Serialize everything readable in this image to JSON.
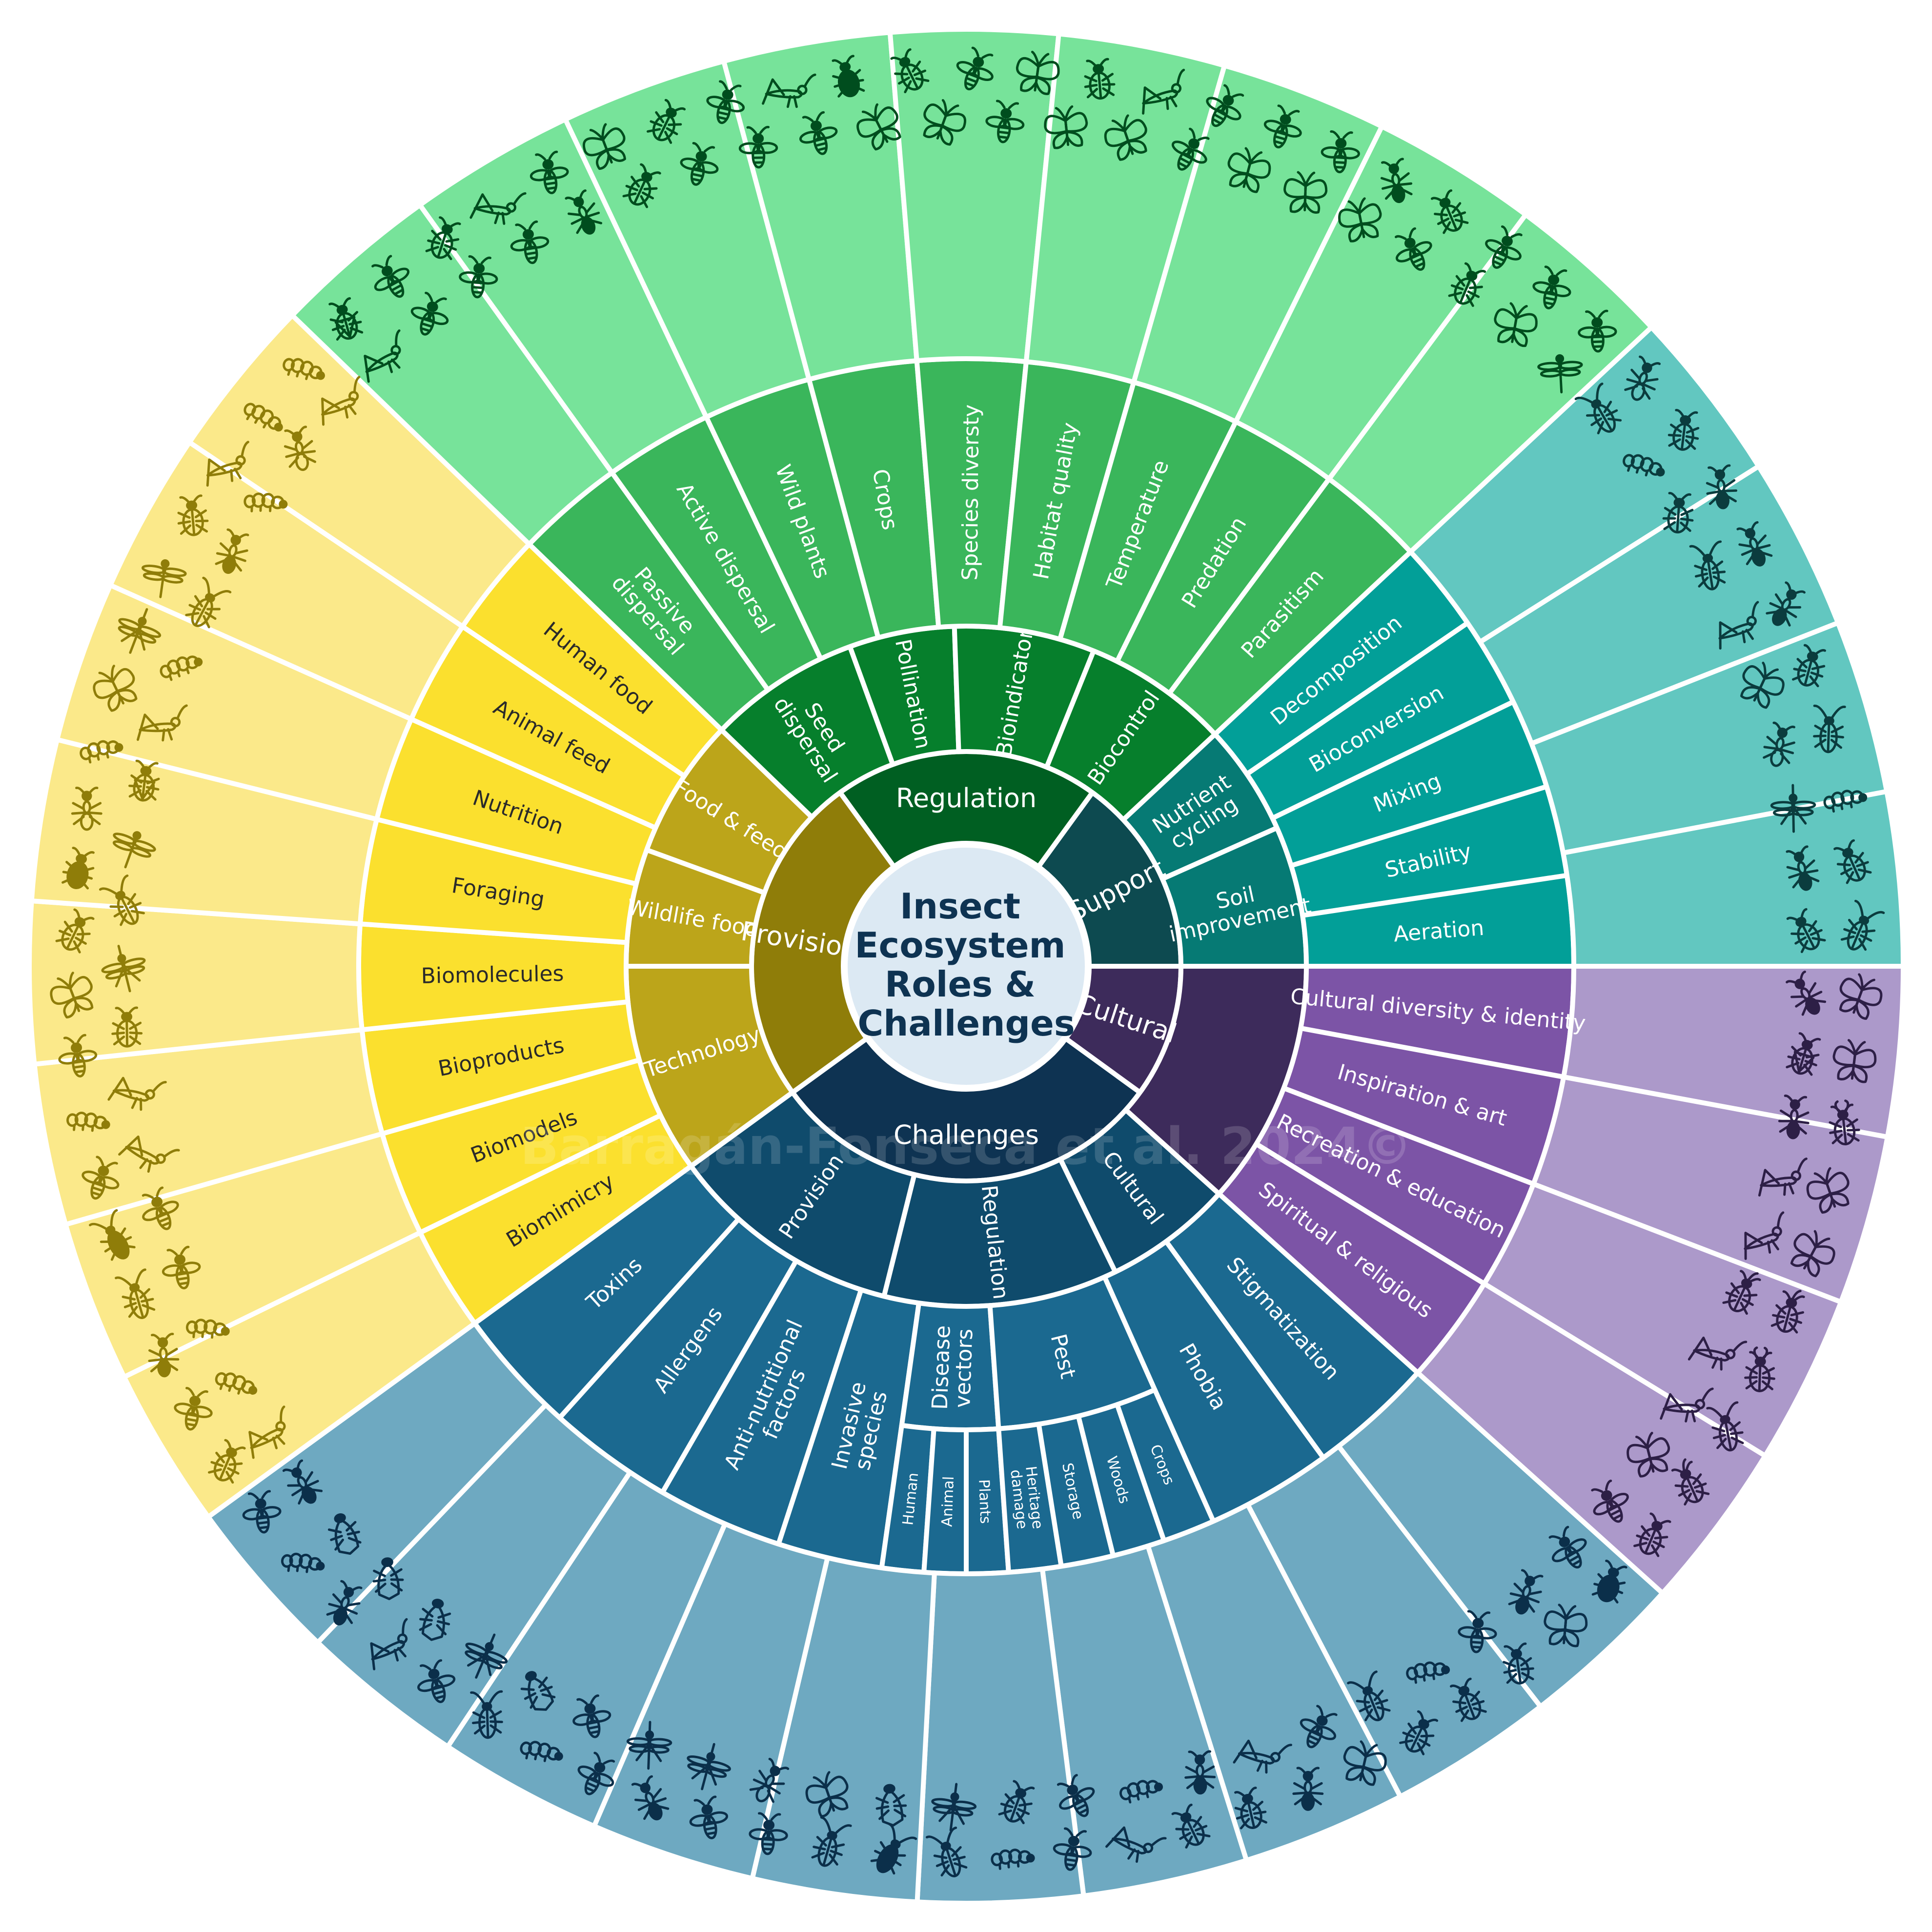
{
  "title_lines": [
    "Insect",
    "Ecosystem",
    "Roles &",
    "Challenges"
  ],
  "watermark": "Barragán-Fonseca et al. 2024©",
  "colors": {
    "centre": "#dce9f3",
    "centre_text": "#0e3352",
    "provision": [
      "#8f7d09",
      "#bca51a",
      "#fbe02e",
      "#fbe98a"
    ],
    "regulation": [
      "#005f22",
      "#067f2c",
      "#3ab65b",
      "#77e39a"
    ],
    "support": [
      "#0d4a50",
      "#067a74",
      "#029f98",
      "#62c7c0"
    ],
    "cultural": [
      "#3d2b5b",
      "#4f377a",
      "#7c54a6",
      "#ac99ca"
    ],
    "challenges": [
      "#0e3352",
      "#0f4b6c",
      "#1b6990",
      "#6ea9c1"
    ],
    "text_dark": "#2a2a2a",
    "icon_provision": "#8f7d09",
    "icon_regulation": "#004d1e",
    "icon_support": "#0b3c3e",
    "icon_cultural": "#2d1f46",
    "icon_challenges": "#0b2f4a"
  },
  "roles": {
    "provision": "Provision",
    "regulation": "Regulation",
    "support": "Support",
    "cultural": "Cultural",
    "challenges": "Challenges"
  },
  "services": {
    "food_feed": "Food & feed",
    "wildlife_food": "Wildlife food",
    "technology": "Technology",
    "seed_dispersal": [
      "Seed",
      "dispersal"
    ],
    "pollination": "Pollination",
    "bioindicator": "Bioindicator",
    "biocontrol": "Biocontrol",
    "nutrient_cycling": [
      "Nutrient",
      "cycling"
    ],
    "soil_improvement": [
      "Soil",
      "improvement"
    ],
    "ch_provision": "Provision",
    "ch_regulation": "Regulation",
    "ch_cultural": "Cultural"
  },
  "outer": {
    "provision": [
      "Human food",
      "Animal feed",
      "Nutrition",
      "Foraging",
      "Biomolecules",
      "Bioproducts",
      "Biomodels",
      "Biomimicry"
    ],
    "regulation": [
      [
        "Passive",
        "dispersal"
      ],
      "Active dispersal",
      "Wild plants",
      "Crops",
      "Species diversty",
      "Habitat quality",
      "Temperature",
      "Predation",
      "Parasitism"
    ],
    "support": [
      "Decomposition",
      "Bioconversion",
      "Mixing",
      "Stability",
      "Aeration"
    ],
    "cultural": [
      "Cultural diversity & identity",
      "Inspiration & art",
      "Recreation & education",
      "Spiritual & religious"
    ],
    "challenges": [
      "Toxins",
      "Allergens",
      [
        "Anti-nutritional",
        "factors"
      ],
      [
        "Invasive",
        "species"
      ],
      [
        "Disease",
        "vectors"
      ],
      "Pest",
      "Phobia",
      "Stigmatization"
    ]
  },
  "sub": {
    "disease_vectors": [
      "Human",
      "Animal",
      "Plants"
    ],
    "pest": [
      [
        "Heritage",
        "damage"
      ],
      "Storage",
      "Woods",
      "Crops"
    ]
  },
  "icons": {
    "provision": [
      "grasshopper",
      "larva",
      "pupa",
      "wasp",
      "fly",
      "grasshopper",
      "grasshopper",
      "beetle",
      "mosquito",
      "cockroach",
      "dragonfly",
      "shield-bug",
      "grasshopper",
      "larva",
      "cockroach",
      "ant",
      "grub",
      "termite",
      "grasshopper",
      "beetle",
      "wasp",
      "ant",
      "longhorn-beetle",
      "bed-bug",
      "wasp",
      "caterpillar",
      "fly",
      "moth",
      "beetle",
      "ladybug",
      "termite",
      "caterpillar",
      "butterfly",
      "mosquito",
      "dragonfly",
      "beetle"
    ],
    "regulation": [
      "grasshopper",
      "fly",
      "wasp",
      "wasp",
      "ant",
      "beetle",
      "fly",
      "bee",
      "wasp",
      "moth",
      "butterfly",
      "bee",
      "moth",
      "butterfly",
      "wasp",
      "butterfly",
      "butterfly",
      "butterfly",
      "wasp",
      "beetle",
      "butterfly",
      "dragonfly",
      "shield-bug",
      "wasp",
      "beetle",
      "grasshopper",
      "wasp",
      "butterfly",
      "beetle",
      "wasp",
      "mantis",
      "ladybug",
      "beetle",
      "wasp",
      "moth",
      "beetle"
    ],
    "support": [
      "cockroach",
      "grub",
      "beetle",
      "cockroach",
      "grasshopper",
      "moth",
      "termite",
      "mosquito",
      "ant",
      "beetle",
      "termite",
      "beetle",
      "ant",
      "ant",
      "ant",
      "beetle"
    ],
    "cultural": [
      "ant",
      "shield-bug",
      "ant",
      "grasshopper",
      "grasshopper",
      "rhino-beetle",
      "mantis",
      "stick-insect",
      "butterfly",
      "wasp",
      "butterfly",
      "butterfly",
      "stag-beetle",
      "moth",
      "butterfly",
      "rhino-beetle",
      "stag-beetle",
      "longhorn-beetle",
      "rhino-beetle",
      "beetle",
      "dragonfly"
    ],
    "challenges": [
      "wasp",
      "ant",
      "wasp",
      "caterpillar",
      "cockroach",
      "wasp",
      "grasshopper",
      "ant",
      "caterpillar",
      "fly",
      "beetle",
      "mosquito",
      "cicada",
      "moth",
      "termite",
      "mosquito",
      "mosquito",
      "bee",
      "flea",
      "mosquito",
      "aphid",
      "cicada",
      "leafhopper",
      "ant",
      "ladybug",
      "moth",
      "beetle",
      "beetle",
      "beetle",
      "moth",
      "ant",
      "beetle",
      "beetle",
      "grasshopper",
      "fly",
      "caterpillar",
      "cockroach",
      "bed-bug",
      "cockroach",
      "fly"
    ]
  }
}
